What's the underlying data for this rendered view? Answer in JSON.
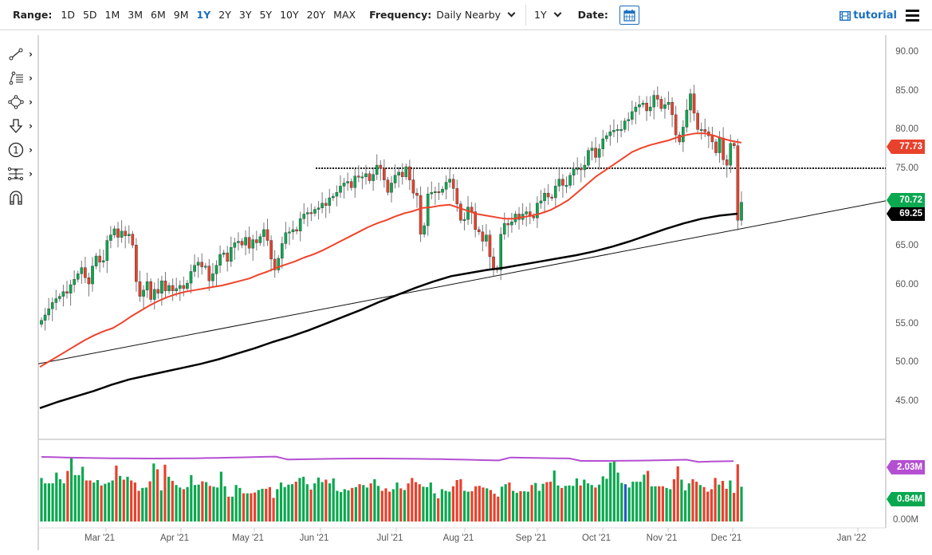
{
  "toolbar": {
    "range_label": "Range:",
    "ranges": [
      "1D",
      "5D",
      "1M",
      "3M",
      "6M",
      "9M",
      "1Y",
      "2Y",
      "3Y",
      "5Y",
      "10Y",
      "20Y",
      "MAX"
    ],
    "active_range": "1Y",
    "frequency_label": "Frequency:",
    "frequency_value": "Daily Nearby",
    "period_value": "1Y",
    "date_label": "Date:",
    "tutorial_label": "tutorial"
  },
  "drawing_tools": [
    {
      "name": "line-tool",
      "icon": "trendline-icon"
    },
    {
      "name": "fib-tool",
      "icon": "fibonacci-icon"
    },
    {
      "name": "shapes-tool",
      "icon": "shapes-icon"
    },
    {
      "name": "arrow-tool",
      "icon": "arrow-down-icon"
    },
    {
      "name": "annotation-tool",
      "icon": "numbered-circle-icon"
    },
    {
      "name": "measure-tool",
      "icon": "measure-icon"
    },
    {
      "name": "magnet-tool",
      "icon": "magnet-icon"
    }
  ],
  "colors": {
    "up": "#0aa84f",
    "down": "#e8412c",
    "ma50": "#f0432a",
    "ma200": "#000000",
    "volume_avg": "#b44fd1",
    "accent": "#1a6fc0",
    "highlight_volume": "#2a56c6"
  },
  "chart_data": {
    "type": "candlestick",
    "title": "",
    "frequency": "Daily Nearby",
    "range": "1Y",
    "y_axis": {
      "ticks": [
        90,
        85,
        80,
        75,
        70,
        65,
        60,
        55,
        50,
        45
      ],
      "tick_labels": [
        "90.00",
        "85.00",
        "80.00",
        "75.00",
        "70.00",
        "65.00",
        "60.00",
        "55.00",
        "50.00",
        "45.00"
      ],
      "ylim": [
        41,
        91
      ]
    },
    "x_axis": {
      "tick_labels": [
        "Mar '21",
        "Apr '21",
        "May '21",
        "Jun '21",
        "Jul '21",
        "Aug '21",
        "Sep '21",
        "Oct '21",
        "Nov '21",
        "Dec '21",
        "Jan '22"
      ]
    },
    "last_price": "77.73",
    "last_price_close": "70.72",
    "ma200_value": "69.25",
    "horizontal_line": 75.1,
    "trendline": {
      "from": {
        "date": "Feb '21",
        "price": 49.9
      },
      "to": {
        "date": "Jan '22",
        "price": 70.9
      }
    },
    "closes": [
      55.5,
      56.2,
      57.0,
      57.8,
      58.3,
      58.6,
      59.2,
      59.0,
      60.1,
      60.8,
      61.5,
      62.3,
      61.0,
      60.2,
      62.5,
      63.8,
      63.0,
      63.2,
      65.8,
      66.5,
      67.3,
      66.2,
      67.0,
      66.4,
      66.6,
      65.2,
      60.5,
      58.6,
      59.4,
      60.5,
      58.2,
      59.5,
      59.0,
      60.6,
      59.3,
      60.0,
      59.3,
      59.6,
      60.0,
      59.6,
      60.3,
      61.8,
      62.6,
      63.0,
      62.4,
      62.5,
      60.6,
      61.5,
      62.6,
      64.0,
      64.2,
      63.1,
      64.9,
      65.5,
      65.7,
      65.2,
      66.2,
      64.8,
      65.9,
      65.5,
      66.3,
      67.2,
      65.8,
      63.4,
      62.0,
      63.5,
      65.4,
      66.8,
      66.9,
      67.2,
      67.0,
      68.6,
      69.2,
      69.4,
      69.3,
      69.8,
      70.0,
      70.6,
      70.3,
      71.3,
      71.5,
      72.0,
      72.8,
      73.2,
      73.4,
      72.6,
      74.1,
      74.0,
      74.0,
      74.4,
      73.5,
      74.3,
      75.5,
      75.1,
      73.6,
      72.0,
      73.2,
      74.2,
      74.6,
      74.0,
      75.3,
      73.6,
      71.9,
      71.6,
      66.6,
      67.7,
      71.8,
      72.0,
      72.1,
      72.0,
      72.4,
      73.3,
      73.7,
      72.5,
      70.5,
      68.4,
      68.5,
      70.1,
      69.5,
      67.2,
      66.9,
      65.7,
      66.5,
      63.7,
      62.2,
      62.0,
      66.6,
      68.0,
      67.8,
      68.2,
      69.2,
      68.5,
      69.2,
      69.5,
      68.9,
      68.7,
      70.6,
      70.9,
      71.9,
      71.4,
      71.3,
      72.8,
      73.7,
      72.9,
      72.9,
      74.2,
      75.0,
      75.1,
      74.9,
      75.5,
      77.4,
      77.7,
      76.5,
      77.6,
      78.9,
      79.3,
      79.8,
      80.0,
      80.1,
      80.1,
      81.2,
      81.4,
      82.4,
      83.0,
      83.3,
      83.5,
      82.5,
      83.0,
      84.5,
      84.0,
      82.8,
      83.3,
      83.6,
      82.0,
      79.4,
      78.5,
      80.4,
      82.6,
      84.7,
      82.2,
      80.1,
      80.1,
      79.8,
      79.3,
      78.5,
      77.1,
      79.0,
      76.2,
      75.5,
      78.3,
      78.0,
      68.4,
      70.72
    ],
    "opens": [
      55.0,
      55.5,
      56.2,
      57.0,
      57.8,
      58.3,
      58.6,
      59.2,
      59.0,
      60.1,
      60.8,
      61.5,
      62.3,
      61.0,
      60.2,
      62.5,
      63.8,
      63.0,
      63.2,
      65.8,
      66.5,
      67.3,
      66.2,
      67.0,
      66.4,
      66.6,
      65.2,
      60.5,
      58.6,
      59.4,
      60.5,
      58.2,
      59.5,
      59.0,
      60.6,
      59.3,
      60.0,
      59.3,
      59.6,
      60.0,
      59.6,
      60.3,
      61.8,
      62.6,
      63.0,
      62.4,
      62.5,
      60.6,
      61.5,
      62.6,
      64.0,
      64.2,
      63.1,
      64.9,
      65.5,
      65.7,
      65.2,
      66.2,
      64.8,
      65.9,
      65.5,
      66.3,
      67.2,
      65.8,
      63.4,
      62.0,
      63.5,
      65.4,
      66.8,
      66.9,
      67.2,
      67.0,
      68.6,
      69.2,
      69.4,
      69.3,
      69.8,
      70.0,
      70.6,
      70.3,
      71.3,
      71.5,
      72.0,
      72.8,
      73.2,
      73.4,
      72.6,
      74.1,
      74.0,
      74.0,
      74.4,
      73.5,
      74.3,
      75.5,
      75.1,
      73.6,
      72.0,
      73.2,
      74.2,
      74.6,
      74.0,
      75.3,
      73.6,
      71.9,
      71.6,
      66.6,
      67.7,
      71.8,
      72.0,
      72.1,
      72.0,
      72.4,
      73.3,
      73.7,
      72.5,
      70.5,
      68.4,
      68.5,
      70.1,
      69.5,
      67.2,
      66.9,
      65.7,
      66.5,
      63.7,
      62.2,
      62.0,
      66.6,
      68.0,
      67.8,
      68.2,
      69.2,
      68.5,
      69.2,
      69.5,
      68.9,
      68.7,
      70.6,
      70.9,
      71.9,
      71.4,
      71.3,
      72.8,
      73.7,
      72.9,
      72.9,
      74.2,
      75.0,
      75.1,
      74.9,
      75.5,
      77.4,
      77.7,
      76.5,
      77.6,
      78.9,
      79.3,
      79.8,
      80.0,
      80.1,
      80.1,
      81.2,
      81.4,
      82.4,
      83.0,
      83.3,
      83.5,
      82.5,
      83.0,
      84.5,
      84.0,
      82.8,
      83.3,
      83.6,
      82.0,
      79.4,
      78.5,
      80.4,
      82.6,
      84.7,
      82.2,
      80.1,
      80.1,
      79.8,
      79.3,
      78.5,
      77.1,
      79.0,
      76.2,
      75.5,
      78.3,
      78.0,
      68.4
    ],
    "ma50": [
      49.5,
      50.2,
      50.9,
      51.6,
      52.3,
      53.0,
      53.6,
      54.1,
      54.5,
      55.2,
      56.0,
      56.7,
      57.4,
      58.0,
      58.5,
      58.9,
      59.2,
      59.4,
      59.6,
      59.8,
      60.0,
      60.3,
      60.6,
      60.9,
      61.4,
      61.8,
      62.3,
      62.7,
      63.1,
      63.6,
      64.0,
      64.5,
      65.1,
      65.7,
      66.3,
      66.9,
      67.5,
      68.0,
      68.4,
      68.9,
      69.3,
      69.6,
      70.0,
      70.1,
      70.3,
      70.4,
      70.0,
      69.6,
      69.2,
      69.0,
      68.8,
      68.6,
      68.6,
      68.8,
      69.0,
      69.3,
      69.7,
      70.3,
      71.0,
      72.0,
      73.0,
      74.0,
      74.8,
      75.6,
      76.4,
      77.2,
      77.7,
      78.1,
      78.4,
      78.7,
      79.1,
      79.4,
      79.6,
      79.6,
      79.3,
      78.9,
      78.6,
      78.4
    ],
    "ma200": [
      44.2,
      45.0,
      45.7,
      46.4,
      47.2,
      47.9,
      48.4,
      48.9,
      49.4,
      49.9,
      50.5,
      51.2,
      51.9,
      52.7,
      53.4,
      54.2,
      55.1,
      56.0,
      56.9,
      57.9,
      58.8,
      59.7,
      60.5,
      61.2,
      61.6,
      62.0,
      62.3,
      62.7,
      63.1,
      63.5,
      63.9,
      64.4,
      65.0,
      65.7,
      66.5,
      67.3,
      68.0,
      68.6,
      69.0,
      69.25
    ],
    "volume_avg_label": "2.03M",
    "volume_last_label": "0.84M",
    "volume_zero_label": "0.00M",
    "volumes": [
      1.05,
      0.92,
      0.92,
      0.92,
      1.18,
      1.02,
      0.92,
      1.22,
      1.55,
      1.12,
      1.12,
      1.32,
      0.99,
      0.99,
      0.94,
      1.0,
      0.87,
      0.91,
      0.94,
      0.99,
      1.35,
      1.1,
      1.01,
      1.08,
      0.99,
      0.94,
      0.74,
      0.81,
      0.82,
      0.97,
      1.4,
      1.26,
      0.75,
      1.37,
      1.08,
      0.98,
      0.88,
      0.82,
      0.78,
      0.83,
      1.12,
      0.88,
      0.89,
      0.97,
      0.95,
      0.86,
      0.84,
      0.82,
      1.2,
      0.85,
      0.6,
      0.6,
      0.88,
      0.81,
      0.68,
      0.68,
      0.68,
      0.7,
      0.76,
      0.79,
      0.79,
      0.83,
      0.57,
      0.78,
      0.94,
      0.83,
      0.89,
      0.9,
      0.96,
      1.05,
      1.08,
      0.9,
      0.77,
      0.92,
      1.06,
      0.95,
      1.01,
      0.92,
      1.04,
      0.74,
      0.71,
      0.78,
      0.75,
      0.81,
      0.83,
      0.9,
      0.88,
      0.82,
      0.92,
      1.02,
      0.86,
      0.74,
      0.8,
      0.72,
      0.78,
      0.94,
      0.8,
      0.76,
      0.92,
      1.05,
      0.95,
      0.9,
      0.84,
      0.83,
      0.94,
      0.68,
      0.56,
      0.78,
      0.74,
      0.72,
      0.85,
      1.0,
      1.02,
      0.74,
      0.72,
      0.73,
      0.85,
      0.86,
      0.82,
      0.8,
      0.76,
      0.67,
      0.6,
      0.84,
      0.9,
      0.94,
      0.74,
      0.69,
      0.73,
      0.73,
      0.72,
      0.88,
      0.93,
      0.74,
      0.91,
      0.95,
      0.96,
      1.23,
      0.87,
      0.81,
      0.86,
      0.87,
      0.86,
      1.04,
      0.87,
      1.01,
      0.92,
      0.88,
      0.82,
      0.89,
      1.09,
      1.03,
      1.42,
      1.46,
      1.18,
      0.93,
      0.9,
      0.82,
      0.96,
      0.96,
      0.96,
      1.13,
      1.22,
      0.85,
      0.85,
      0.85,
      0.85,
      0.81,
      0.78,
      1.02,
      1.33,
      1.01,
      0.75,
      0.92,
      1.02,
      0.96,
      0.88,
      0.83,
      0.72,
      0.78,
      1.05,
      0.89,
      0.98,
      0.79,
      0.99,
      0.69,
      1.38,
      0.84
    ]
  }
}
